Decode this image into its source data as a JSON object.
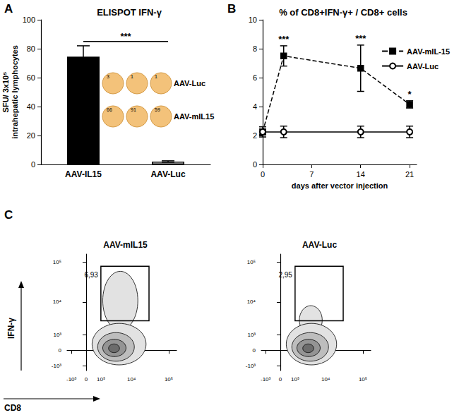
{
  "chart_data": [
    {
      "type": "bar",
      "panel_label": "A",
      "title": "ELISPOT IFN-γ",
      "y_label": "SFU/ 3x10⁵\nintrahepatic lymphocytes",
      "categories": [
        "AAV-IL15",
        "AAV-Luc"
      ],
      "values": [
        74.5,
        2
      ],
      "errors": [
        7.5,
        0.5
      ],
      "colors": [
        "#000000",
        "#ffffff"
      ],
      "ylim": [
        0,
        100
      ],
      "yticks": [
        0,
        20,
        40,
        60,
        80,
        100
      ],
      "grid": false,
      "annotations": [
        {
          "text": "***",
          "from": "AAV-IL15",
          "to": "AAV-Luc",
          "y": 85
        }
      ],
      "inset": {
        "rows": [
          {
            "label": "AAV-Luc",
            "spots": [
              3,
              1,
              1
            ]
          },
          {
            "label": "AAV-mIL15",
            "spots": [
              66,
              91,
              59
            ]
          }
        ]
      }
    },
    {
      "type": "line",
      "panel_label": "B",
      "title": "% of CD8+IFN-γ+ / CD8+ cells",
      "x_label": "days after vector injection",
      "x": [
        0,
        3,
        14,
        21
      ],
      "series": [
        {
          "name": "AAV-mIL-15",
          "color": "#000000",
          "marker": "square",
          "line_style": "dashed",
          "values": [
            2.25,
            7.5,
            6.65,
            4.15
          ],
          "errors": [
            0.2,
            0.7,
            1.6,
            0.25
          ],
          "significance": [
            null,
            "***",
            "***",
            "*"
          ]
        },
        {
          "name": "AAV-Luc",
          "color": "#000000",
          "marker": "circle_open",
          "line_style": "solid",
          "values": [
            2.25,
            2.25,
            2.25,
            2.25
          ],
          "errors": [
            0.35,
            0.4,
            0.4,
            0.4
          ]
        }
      ],
      "xlim": [
        0,
        22
      ],
      "xticks": [
        0,
        7,
        14,
        21
      ],
      "ylim": [
        0,
        10
      ],
      "yticks": [
        0,
        2,
        4,
        6,
        8,
        10
      ],
      "legend": "right",
      "grid": false
    },
    {
      "type": "contour",
      "panel_label": "C",
      "title": "AAV-mIL15",
      "x_label": "CD8",
      "y_label": "IFN-γ",
      "xlim": [
        -1500,
        160000
      ],
      "ylim": [
        -1500,
        160000
      ],
      "xticks": [
        {
          "value": -1000,
          "label": "-10³"
        },
        0,
        {
          "value": 1000,
          "label": "10³"
        },
        {
          "value": 10000,
          "label": "10⁴"
        },
        {
          "value": 100000,
          "label": "10⁵"
        }
      ],
      "yticks": [
        {
          "value": -1000,
          "label": "-10³"
        },
        0,
        {
          "value": 1000,
          "label": "10³"
        },
        {
          "value": 10000,
          "label": "10⁴"
        },
        {
          "value": 100000,
          "label": "10⁵"
        }
      ],
      "contours": [
        [
          1200,
          15000,
          1500,
          60000
        ],
        [
          300,
          25000,
          -900,
          2500
        ],
        [
          700,
          12000,
          -600,
          1200
        ],
        [
          1200,
          7000,
          -300,
          600
        ],
        [
          2000,
          4500,
          -100,
          300
        ]
      ],
      "gate": {
        "x": [
          1000,
          30000
        ],
        "y": [
          3000,
          80000
        ],
        "value": 6.93,
        "label": "6,93"
      }
    },
    {
      "type": "contour",
      "title": "AAV-Luc",
      "xlim": [
        -1500,
        160000
      ],
      "ylim": [
        -1500,
        160000
      ],
      "xticks": [
        {
          "value": -1000,
          "label": "-10³"
        },
        0,
        {
          "value": 1000,
          "label": "10³"
        },
        {
          "value": 10000,
          "label": "10⁴"
        },
        {
          "value": 100000,
          "label": "10⁵"
        }
      ],
      "yticks": [
        {
          "value": -1000,
          "label": "-10³"
        },
        0,
        {
          "value": 1000,
          "label": "10³"
        },
        {
          "value": 10000,
          "label": "10⁴"
        },
        {
          "value": 100000,
          "label": "10⁵"
        }
      ],
      "contours": [
        [
          1500,
          8000,
          1000,
          8000
        ],
        [
          300,
          20000,
          -900,
          2500
        ],
        [
          700,
          12000,
          -600,
          1200
        ],
        [
          1200,
          7000,
          -300,
          600
        ],
        [
          2000,
          4500,
          -100,
          300
        ]
      ],
      "gate": {
        "x": [
          1000,
          30000
        ],
        "y": [
          3000,
          80000
        ],
        "value": 2.95,
        "label": "2,95"
      }
    }
  ]
}
